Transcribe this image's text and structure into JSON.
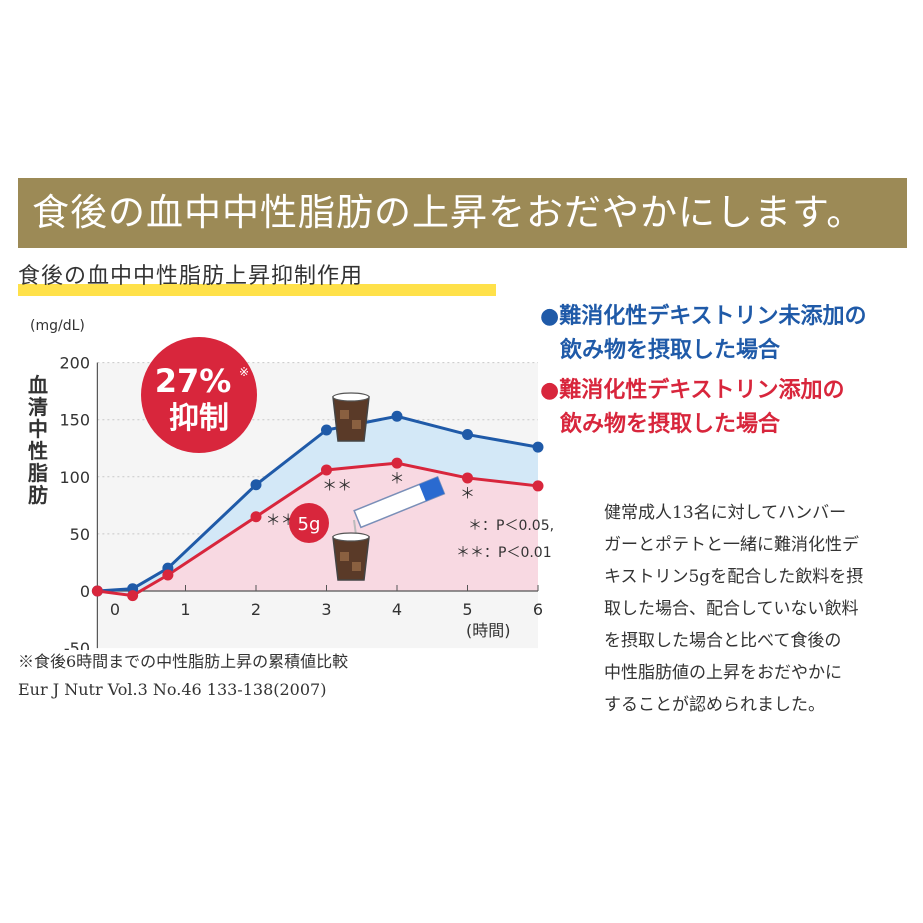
{
  "banner": {
    "title": "食後の血中中性脂肪の上昇をおだやかにします。"
  },
  "subtitle": "食後の血中中性脂肪上昇抑制作用",
  "legend": {
    "blue": [
      "●難消化性デキストリン未添加の",
      "飲み物を摂取した場合"
    ],
    "red": [
      "●難消化性デキストリン添加の",
      "飲み物を摂取した場合"
    ]
  },
  "description": [
    "健常成人13名に対してハンバー",
    "ガーとポテトと一緒に難消化性デ",
    "キストリン5gを配合した飲料を摂",
    "取した場合、配合していない飲料",
    "を摂取した場合と比べて食後の",
    "中性脂肪値の上昇をおだやかに",
    "することが認められました。"
  ],
  "footnotes": [
    "※食後6時間までの中性脂肪上昇の累積値比較",
    "Eur J Nutr Vol.3 No.46 133-138(2007)"
  ],
  "badge": {
    "percent": "27%",
    "mark": "※",
    "label": "抑制"
  },
  "dose_badge": "5g",
  "significance": [
    "＊：P＜0.05,",
    "＊＊：P＜0.01"
  ],
  "chart_data": {
    "type": "line",
    "ylabel": "血清中性脂肪",
    "yunit": "(mg/dL)",
    "xlabel": "(時間)",
    "ylim": [
      -50,
      200
    ],
    "xlim": [
      -0.25,
      6
    ],
    "yticks": [
      -50,
      0,
      50,
      100,
      150,
      200
    ],
    "xticks": [
      0,
      1,
      2,
      3,
      4,
      5,
      6
    ],
    "series": [
      {
        "name": "難消化性デキストリン未添加",
        "color": "#1f5aa8",
        "x": [
          -0.25,
          0.25,
          0.75,
          2,
          3,
          4,
          5,
          6
        ],
        "y": [
          0,
          2,
          20,
          93,
          141,
          153,
          137,
          126
        ]
      },
      {
        "name": "難消化性デキストリン添加",
        "color": "#d8263c",
        "x": [
          -0.25,
          0.25,
          0.75,
          2,
          3,
          4,
          5,
          6
        ],
        "y": [
          0,
          -4,
          14,
          65,
          106,
          112,
          99,
          92
        ]
      }
    ],
    "annotations": [
      {
        "x": 2.35,
        "y": 58,
        "text": "＊＊"
      },
      {
        "x": 3.15,
        "y": 88,
        "text": "＊＊"
      },
      {
        "x": 4.0,
        "y": 94,
        "text": "＊"
      },
      {
        "x": 5.0,
        "y": 81,
        "text": "＊"
      }
    ]
  }
}
